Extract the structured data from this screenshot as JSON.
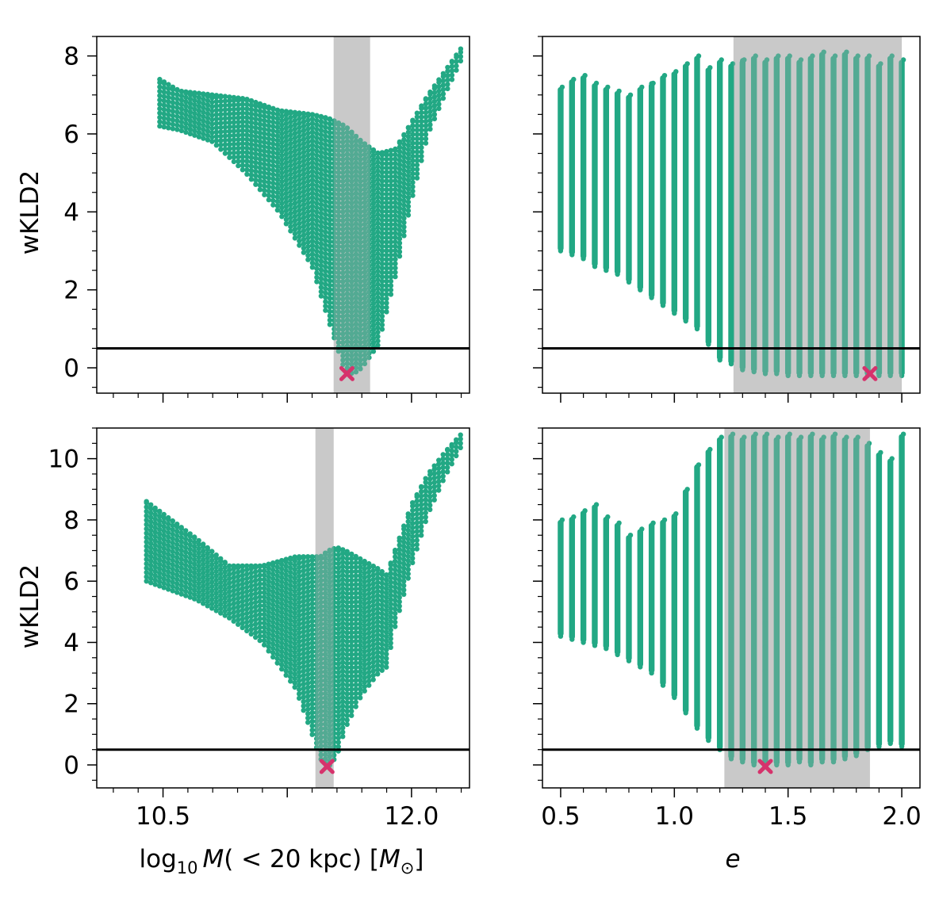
{
  "colors": {
    "points": "#22a884",
    "best_marker": "#d6336c",
    "band": "#d3d3d3",
    "threshold": "#000000"
  },
  "threshold": 0.5,
  "labels": {
    "ylabel": "wKLD2",
    "xlabel_left_prefix": "log",
    "xlabel_left_sub": "10",
    "xlabel_left_M": "M",
    "xlabel_left_rest": "( < 20 kpc) [",
    "xlabel_left_Msun": "M",
    "xlabel_left_sun_sub": "⊙",
    "xlabel_left_close": "]",
    "xlabel_right": "e"
  },
  "chart_data": [
    {
      "id": "top-left",
      "type": "scatter",
      "ylabel": "wKLD2",
      "xlim": [
        10.1,
        12.35
      ],
      "ylim": [
        -0.65,
        8.5
      ],
      "xticks": [
        10.5,
        11.25,
        12.0
      ],
      "xtick_labels": [
        "",
        "",
        ""
      ],
      "yticks": [
        0,
        2,
        4,
        6,
        8
      ],
      "ytick_labels": [
        "0",
        "2",
        "4",
        "6",
        "8"
      ],
      "band": [
        11.53,
        11.75
      ],
      "best": [
        11.61,
        -0.15
      ],
      "threshold": 0.5,
      "envelope": {
        "kind": "mass",
        "x": [
          10.48,
          10.6,
          10.8,
          11.0,
          11.2,
          11.4,
          11.5,
          11.6,
          11.65,
          11.7,
          11.8,
          11.9,
          12.0,
          12.1,
          12.2,
          12.3
        ],
        "upper": [
          7.4,
          7.1,
          7.0,
          6.9,
          6.6,
          6.5,
          6.4,
          6.2,
          6.0,
          5.8,
          5.5,
          5.6,
          6.3,
          7.0,
          7.6,
          8.2
        ],
        "lower": [
          6.2,
          6.1,
          5.8,
          5.0,
          4.0,
          2.6,
          1.2,
          -0.1,
          -0.15,
          0.0,
          0.6,
          2.3,
          4.3,
          6.0,
          7.0,
          7.9
        ]
      }
    },
    {
      "id": "top-right",
      "type": "scatter",
      "xlim": [
        0.42,
        2.08
      ],
      "ylim": [
        -0.65,
        8.5
      ],
      "xticks": [
        0.5,
        1.0,
        1.5,
        2.0
      ],
      "xtick_labels": [
        "",
        "",
        "",
        ""
      ],
      "yticks": [
        0,
        2,
        4,
        6,
        8
      ],
      "ytick_labels": [
        "",
        "",
        "",
        "",
        ""
      ],
      "band": [
        1.26,
        2.0
      ],
      "best": [
        1.86,
        -0.15
      ],
      "threshold": 0.5,
      "columns": {
        "x": [
          0.5,
          0.55,
          0.6,
          0.65,
          0.7,
          0.75,
          0.8,
          0.85,
          0.9,
          0.95,
          1.0,
          1.05,
          1.1,
          1.15,
          1.2,
          1.25,
          1.3,
          1.35,
          1.4,
          1.45,
          1.5,
          1.55,
          1.6,
          1.65,
          1.7,
          1.75,
          1.8,
          1.85,
          1.9,
          1.95,
          2.0
        ],
        "top": [
          7.2,
          7.4,
          7.5,
          7.3,
          7.2,
          7.1,
          7.0,
          7.2,
          7.3,
          7.5,
          7.6,
          7.8,
          8.0,
          7.7,
          7.9,
          7.8,
          7.9,
          8.0,
          7.9,
          8.0,
          8.0,
          7.9,
          8.0,
          8.1,
          8.0,
          8.1,
          8.0,
          8.0,
          7.8,
          8.0,
          7.9
        ],
        "bottom": [
          3.0,
          2.9,
          2.8,
          2.6,
          2.5,
          2.4,
          2.2,
          2.0,
          1.8,
          1.6,
          1.4,
          1.2,
          1.0,
          0.6,
          0.2,
          0.1,
          -0.05,
          -0.1,
          -0.15,
          -0.15,
          -0.2,
          -0.2,
          -0.2,
          -0.2,
          -0.2,
          -0.2,
          -0.2,
          -0.2,
          -0.2,
          -0.2,
          -0.2
        ]
      }
    },
    {
      "id": "bottom-left",
      "type": "scatter",
      "ylabel": "wKLD2",
      "xlabel": "log10 M( < 20 kpc) [M_sun]",
      "xlim": [
        10.1,
        12.35
      ],
      "ylim": [
        -0.75,
        11.0
      ],
      "xticks": [
        10.5,
        11.25,
        12.0
      ],
      "xtick_labels": [
        "10.5",
        "",
        "12.0"
      ],
      "yticks": [
        0,
        2,
        4,
        6,
        8,
        10
      ],
      "ytick_labels": [
        "0",
        "2",
        "4",
        "6",
        "8",
        "10"
      ],
      "band": [
        11.42,
        11.53
      ],
      "best": [
        11.49,
        -0.05
      ],
      "threshold": 0.5,
      "envelope": {
        "kind": "mass",
        "x": [
          10.4,
          10.5,
          10.7,
          10.9,
          11.1,
          11.3,
          11.4,
          11.45,
          11.5,
          11.55,
          11.6,
          11.7,
          11.8,
          11.85,
          11.9,
          12.0,
          12.1,
          12.2,
          12.3
        ],
        "upper": [
          8.6,
          8.2,
          7.4,
          6.5,
          6.5,
          6.8,
          6.8,
          6.8,
          7.0,
          7.1,
          7.0,
          6.7,
          6.4,
          6.2,
          7.0,
          8.5,
          9.5,
          10.2,
          10.8
        ],
        "lower": [
          6.0,
          5.8,
          5.4,
          4.8,
          4.0,
          2.5,
          1.0,
          0.2,
          -0.05,
          0.3,
          1.2,
          2.3,
          3.0,
          3.2,
          4.5,
          6.5,
          8.2,
          9.4,
          10.4
        ]
      }
    },
    {
      "id": "bottom-right",
      "type": "scatter",
      "xlabel": "e",
      "xlim": [
        0.42,
        2.08
      ],
      "ylim": [
        -0.75,
        11.0
      ],
      "xticks": [
        0.5,
        1.0,
        1.5,
        2.0
      ],
      "xtick_labels": [
        "0.5",
        "1.0",
        "1.5",
        "2.0"
      ],
      "yticks": [
        0,
        2,
        4,
        6,
        8,
        10
      ],
      "ytick_labels": [
        "",
        "",
        "",
        "",
        "",
        ""
      ],
      "band": [
        1.22,
        1.86
      ],
      "best": [
        1.4,
        -0.05
      ],
      "threshold": 0.5,
      "columns": {
        "x": [
          0.5,
          0.55,
          0.6,
          0.65,
          0.7,
          0.75,
          0.8,
          0.85,
          0.9,
          0.95,
          1.0,
          1.05,
          1.1,
          1.15,
          1.2,
          1.25,
          1.3,
          1.35,
          1.4,
          1.45,
          1.5,
          1.55,
          1.6,
          1.65,
          1.7,
          1.75,
          1.8,
          1.85,
          1.9,
          1.95,
          2.0
        ],
        "top": [
          8.0,
          8.1,
          8.3,
          8.5,
          8.1,
          7.9,
          7.5,
          7.7,
          7.9,
          8.0,
          8.2,
          9.0,
          9.8,
          10.3,
          10.7,
          10.8,
          10.7,
          10.8,
          10.8,
          10.7,
          10.8,
          10.7,
          10.8,
          10.7,
          10.8,
          10.7,
          10.7,
          10.5,
          10.2,
          10.0,
          10.8
        ],
        "bottom": [
          4.2,
          4.1,
          4.0,
          3.9,
          3.8,
          3.6,
          3.4,
          3.2,
          3.0,
          2.6,
          2.2,
          1.7,
          1.2,
          0.8,
          0.5,
          0.2,
          0.1,
          0.0,
          -0.05,
          0.0,
          0.0,
          0.1,
          0.0,
          0.1,
          0.1,
          0.2,
          0.3,
          0.5,
          0.6,
          0.7,
          0.6
        ]
      }
    }
  ]
}
